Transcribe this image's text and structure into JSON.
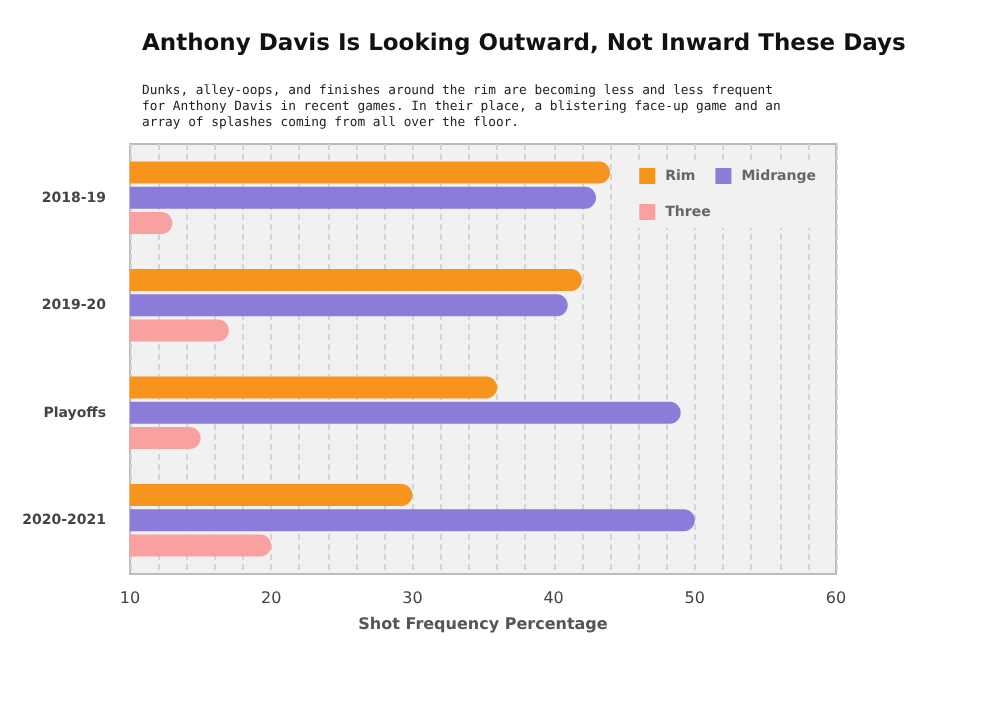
{
  "chart_data": {
    "type": "bar",
    "orientation": "horizontal",
    "title": "Anthony Davis Is Looking Outward, Not Inward These Days",
    "subtitle": "Dunks, alley-oops, and finishes around the rim are becoming less and less frequent for Anthony Davis in recent games. In their place, a blistering face-up game and an array of splashes coming from all over the floor.",
    "xlabel": "Shot Frequency Percentage",
    "categories": [
      "2018-19",
      "2019-20",
      "Playoffs",
      "2020-2021"
    ],
    "series": [
      {
        "name": "Rim",
        "color": "#f7941d",
        "values": [
          44,
          42,
          36,
          30
        ]
      },
      {
        "name": "Midrange",
        "color": "#8a7cd8",
        "values": [
          43,
          41,
          49,
          50
        ]
      },
      {
        "name": "Three",
        "color": "#f9a0a0",
        "values": [
          13,
          17,
          15,
          20
        ]
      }
    ],
    "xlim": [
      10,
      60
    ],
    "xticks": [
      10,
      {
        "value": 12,
        "label": null
      },
      {
        "value": 14,
        "label": null
      },
      {
        "value": 16,
        "label": null
      },
      {
        "value": 18,
        "label": null
      },
      20,
      {
        "value": 22,
        "label": null
      },
      {
        "value": 24,
        "label": null
      },
      {
        "value": 26,
        "label": null
      },
      {
        "value": 28,
        "label": null
      },
      30,
      {
        "value": 32,
        "label": null
      },
      {
        "value": 34,
        "label": null
      },
      {
        "value": 36,
        "label": null
      },
      {
        "value": 38,
        "label": null
      },
      40,
      {
        "value": 42,
        "label": null
      },
      {
        "value": 44,
        "label": null
      },
      {
        "value": 46,
        "label": null
      },
      {
        "value": 48,
        "label": null
      },
      50,
      {
        "value": 52,
        "label": null
      },
      {
        "value": 54,
        "label": null
      },
      {
        "value": 56,
        "label": null
      },
      {
        "value": 58,
        "label": null
      },
      60
    ],
    "grid": "x",
    "legend": "top right"
  }
}
